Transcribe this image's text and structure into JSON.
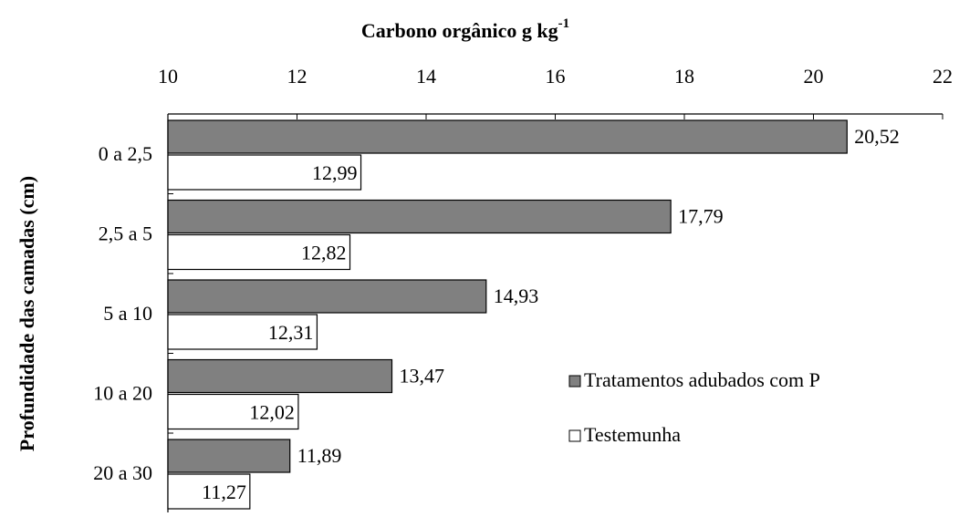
{
  "chart_data": {
    "type": "hbar",
    "title": "Carbono orgânico g kg",
    "title_superscript": "-1",
    "y_label": "Profundidade das camadas (cm)",
    "categories": [
      "0 a 2,5",
      "2,5 a 5",
      "5 a 10",
      "10 a 20",
      "20 a 30"
    ],
    "series": [
      {
        "name": "Tratamentos adubados com P",
        "color": "#808080",
        "values": [
          20.52,
          17.79,
          14.93,
          13.47,
          11.89
        ],
        "value_labels": [
          "20,52",
          "17,79",
          "14,93",
          "13,47",
          "11,89"
        ]
      },
      {
        "name": "Testemunha",
        "color": "#ffffff",
        "values": [
          12.99,
          12.82,
          12.31,
          12.02,
          11.27
        ],
        "value_labels": [
          "12,99",
          "12,82",
          "12,31",
          "12,02",
          "11,27"
        ]
      }
    ],
    "xlim": [
      10,
      22
    ],
    "xticks": [
      10,
      12,
      14,
      16,
      18,
      20,
      22
    ],
    "x_axis_position": "top",
    "grid": false
  }
}
